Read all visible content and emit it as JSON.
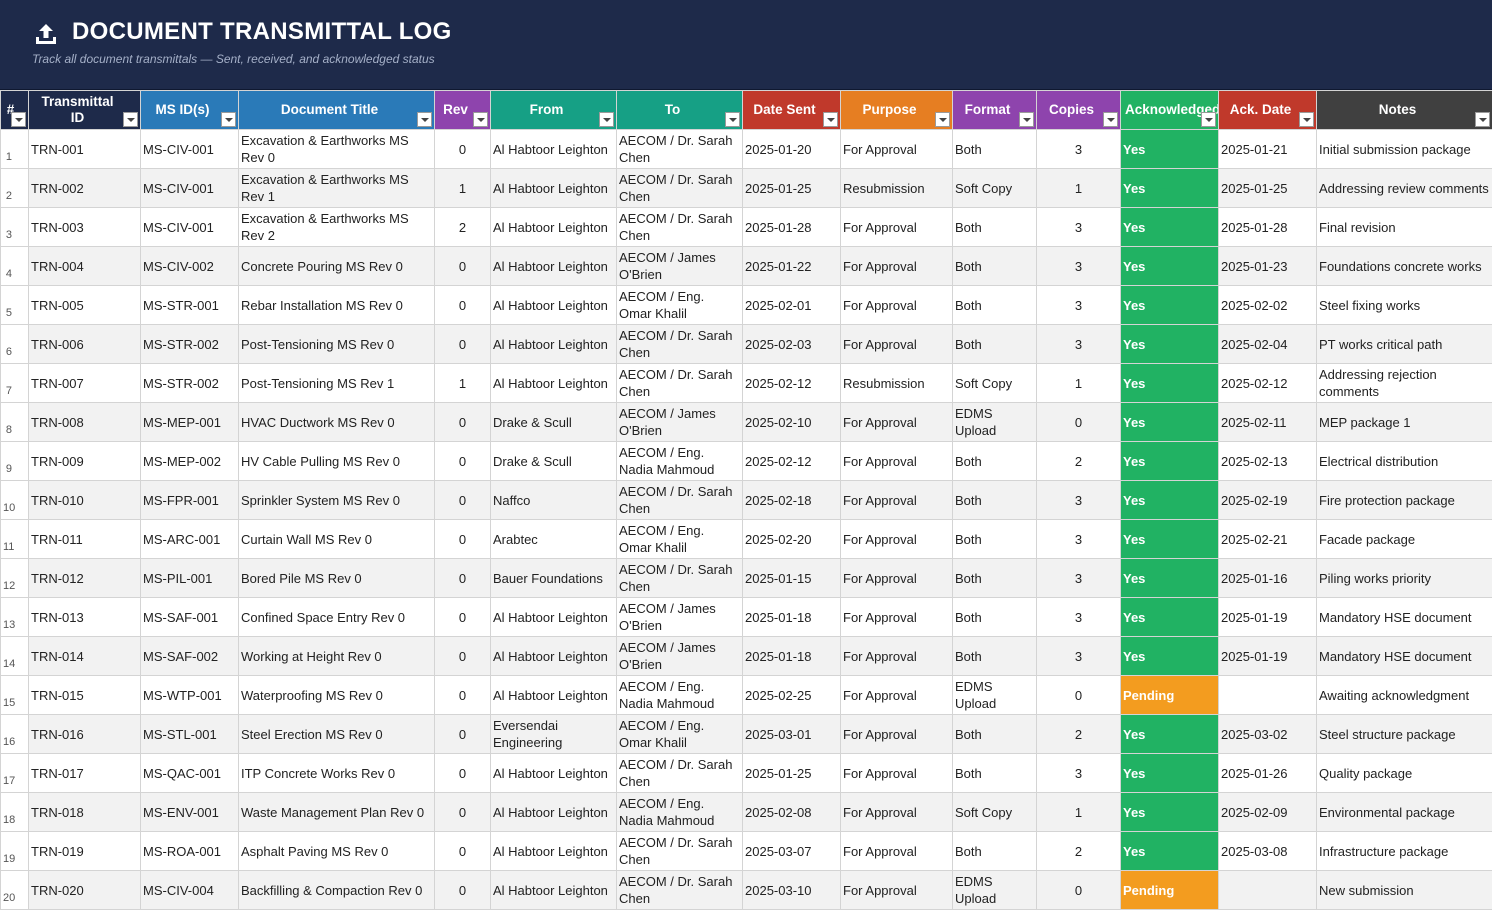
{
  "banner": {
    "icon": "upload-icon",
    "title": "DOCUMENT TRANSMITTAL LOG",
    "subtitle": "Track all document transmittals — Sent, received, and acknowledged status"
  },
  "colors": {
    "banner": "#1e2a4a",
    "status_yes": "#21b263",
    "status_pending": "#f39c1f"
  },
  "columns": [
    {
      "key": "num",
      "label": "#",
      "color": "#1e2a4a"
    },
    {
      "key": "id",
      "label": "Transmittal ID",
      "color": "#1e2a4a"
    },
    {
      "key": "ms",
      "label": "MS ID(s)",
      "color": "#2a7ab8"
    },
    {
      "key": "title",
      "label": "Document Title",
      "color": "#2a7ab8"
    },
    {
      "key": "rev",
      "label": "Rev",
      "color": "#8e44ad"
    },
    {
      "key": "from",
      "label": "From",
      "color": "#16a085"
    },
    {
      "key": "to",
      "label": "To",
      "color": "#16a085"
    },
    {
      "key": "sent",
      "label": "Date Sent",
      "color": "#c0392b"
    },
    {
      "key": "purpose",
      "label": "Purpose",
      "color": "#e67e22"
    },
    {
      "key": "format",
      "label": "Format",
      "color": "#8e44ad"
    },
    {
      "key": "copies",
      "label": "Copies",
      "color": "#8e44ad"
    },
    {
      "key": "ack",
      "label": "Acknowledged",
      "color": "#21b263"
    },
    {
      "key": "ackdate",
      "label": "Ack. Date",
      "color": "#c0392b"
    },
    {
      "key": "notes",
      "label": "Notes",
      "color": "#404040"
    }
  ],
  "rows": [
    {
      "num": "1",
      "id": "TRN-001",
      "ms": "MS-CIV-001",
      "title": "Excavation & Earthworks MS Rev 0",
      "rev": "0",
      "from": "Al Habtoor Leighton",
      "to": "AECOM / Dr. Sarah Chen",
      "sent": "2025-01-20",
      "purpose": "For Approval",
      "format": "Both",
      "copies": "3",
      "ack": "Yes",
      "ackdate": "2025-01-21",
      "notes": "Initial submission package"
    },
    {
      "num": "2",
      "id": "TRN-002",
      "ms": "MS-CIV-001",
      "title": "Excavation & Earthworks MS Rev 1",
      "rev": "1",
      "from": "Al Habtoor Leighton",
      "to": "AECOM / Dr. Sarah Chen",
      "sent": "2025-01-25",
      "purpose": "Resubmission",
      "format": "Soft Copy",
      "copies": "1",
      "ack": "Yes",
      "ackdate": "2025-01-25",
      "notes": "Addressing review comments"
    },
    {
      "num": "3",
      "id": "TRN-003",
      "ms": "MS-CIV-001",
      "title": "Excavation & Earthworks MS Rev 2",
      "rev": "2",
      "from": "Al Habtoor Leighton",
      "to": "AECOM / Dr. Sarah Chen",
      "sent": "2025-01-28",
      "purpose": "For Approval",
      "format": "Both",
      "copies": "3",
      "ack": "Yes",
      "ackdate": "2025-01-28",
      "notes": "Final revision"
    },
    {
      "num": "4",
      "id": "TRN-004",
      "ms": "MS-CIV-002",
      "title": "Concrete Pouring MS Rev 0",
      "rev": "0",
      "from": "Al Habtoor Leighton",
      "to": "AECOM / James O'Brien",
      "sent": "2025-01-22",
      "purpose": "For Approval",
      "format": "Both",
      "copies": "3",
      "ack": "Yes",
      "ackdate": "2025-01-23",
      "notes": "Foundations concrete works"
    },
    {
      "num": "5",
      "id": "TRN-005",
      "ms": "MS-STR-001",
      "title": "Rebar Installation MS Rev 0",
      "rev": "0",
      "from": "Al Habtoor Leighton",
      "to": "AECOM / Eng. Omar Khalil",
      "sent": "2025-02-01",
      "purpose": "For Approval",
      "format": "Both",
      "copies": "3",
      "ack": "Yes",
      "ackdate": "2025-02-02",
      "notes": "Steel fixing works"
    },
    {
      "num": "6",
      "id": "TRN-006",
      "ms": "MS-STR-002",
      "title": "Post-Tensioning MS Rev 0",
      "rev": "0",
      "from": "Al Habtoor Leighton",
      "to": "AECOM / Dr. Sarah Chen",
      "sent": "2025-02-03",
      "purpose": "For Approval",
      "format": "Both",
      "copies": "3",
      "ack": "Yes",
      "ackdate": "2025-02-04",
      "notes": "PT works critical path"
    },
    {
      "num": "7",
      "id": "TRN-007",
      "ms": "MS-STR-002",
      "title": "Post-Tensioning MS Rev 1",
      "rev": "1",
      "from": "Al Habtoor Leighton",
      "to": "AECOM / Dr. Sarah Chen",
      "sent": "2025-02-12",
      "purpose": "Resubmission",
      "format": "Soft Copy",
      "copies": "1",
      "ack": "Yes",
      "ackdate": "2025-02-12",
      "notes": "Addressing rejection comments"
    },
    {
      "num": "8",
      "id": "TRN-008",
      "ms": "MS-MEP-001",
      "title": "HVAC Ductwork MS Rev 0",
      "rev": "0",
      "from": "Drake & Scull",
      "to": "AECOM / James O'Brien",
      "sent": "2025-02-10",
      "purpose": "For Approval",
      "format": "EDMS Upload",
      "copies": "0",
      "ack": "Yes",
      "ackdate": "2025-02-11",
      "notes": "MEP package 1"
    },
    {
      "num": "9",
      "id": "TRN-009",
      "ms": "MS-MEP-002",
      "title": "HV Cable Pulling MS Rev 0",
      "rev": "0",
      "from": "Drake & Scull",
      "to": "AECOM / Eng. Nadia Mahmoud",
      "sent": "2025-02-12",
      "purpose": "For Approval",
      "format": "Both",
      "copies": "2",
      "ack": "Yes",
      "ackdate": "2025-02-13",
      "notes": "Electrical distribution"
    },
    {
      "num": "10",
      "id": "TRN-010",
      "ms": "MS-FPR-001",
      "title": "Sprinkler System MS Rev 0",
      "rev": "0",
      "from": "Naffco",
      "to": "AECOM / Dr. Sarah Chen",
      "sent": "2025-02-18",
      "purpose": "For Approval",
      "format": "Both",
      "copies": "3",
      "ack": "Yes",
      "ackdate": "2025-02-19",
      "notes": "Fire protection package"
    },
    {
      "num": "11",
      "id": "TRN-011",
      "ms": "MS-ARC-001",
      "title": "Curtain Wall MS Rev 0",
      "rev": "0",
      "from": "Arabtec",
      "to": "AECOM / Eng. Omar Khalil",
      "sent": "2025-02-20",
      "purpose": "For Approval",
      "format": "Both",
      "copies": "3",
      "ack": "Yes",
      "ackdate": "2025-02-21",
      "notes": "Facade package"
    },
    {
      "num": "12",
      "id": "TRN-012",
      "ms": "MS-PIL-001",
      "title": "Bored Pile MS Rev 0",
      "rev": "0",
      "from": "Bauer Foundations",
      "to": "AECOM / Dr. Sarah Chen",
      "sent": "2025-01-15",
      "purpose": "For Approval",
      "format": "Both",
      "copies": "3",
      "ack": "Yes",
      "ackdate": "2025-01-16",
      "notes": "Piling works priority"
    },
    {
      "num": "13",
      "id": "TRN-013",
      "ms": "MS-SAF-001",
      "title": "Confined Space Entry Rev 0",
      "rev": "0",
      "from": "Al Habtoor Leighton",
      "to": "AECOM / James O'Brien",
      "sent": "2025-01-18",
      "purpose": "For Approval",
      "format": "Both",
      "copies": "3",
      "ack": "Yes",
      "ackdate": "2025-01-19",
      "notes": "Mandatory HSE document"
    },
    {
      "num": "14",
      "id": "TRN-014",
      "ms": "MS-SAF-002",
      "title": "Working at Height Rev 0",
      "rev": "0",
      "from": "Al Habtoor Leighton",
      "to": "AECOM / James O'Brien",
      "sent": "2025-01-18",
      "purpose": "For Approval",
      "format": "Both",
      "copies": "3",
      "ack": "Yes",
      "ackdate": "2025-01-19",
      "notes": "Mandatory HSE document"
    },
    {
      "num": "15",
      "id": "TRN-015",
      "ms": "MS-WTP-001",
      "title": "Waterproofing MS Rev 0",
      "rev": "0",
      "from": "Al Habtoor Leighton",
      "to": "AECOM / Eng. Nadia Mahmoud",
      "sent": "2025-02-25",
      "purpose": "For Approval",
      "format": "EDMS Upload",
      "copies": "0",
      "ack": "Pending",
      "ackdate": "",
      "notes": "Awaiting acknowledgment"
    },
    {
      "num": "16",
      "id": "TRN-016",
      "ms": "MS-STL-001",
      "title": "Steel Erection MS Rev 0",
      "rev": "0",
      "from": "Eversendai Engineering",
      "to": "AECOM / Eng. Omar Khalil",
      "sent": "2025-03-01",
      "purpose": "For Approval",
      "format": "Both",
      "copies": "2",
      "ack": "Yes",
      "ackdate": "2025-03-02",
      "notes": "Steel structure package"
    },
    {
      "num": "17",
      "id": "TRN-017",
      "ms": "MS-QAC-001",
      "title": "ITP Concrete Works Rev 0",
      "rev": "0",
      "from": "Al Habtoor Leighton",
      "to": "AECOM / Dr. Sarah Chen",
      "sent": "2025-01-25",
      "purpose": "For Approval",
      "format": "Both",
      "copies": "3",
      "ack": "Yes",
      "ackdate": "2025-01-26",
      "notes": "Quality package"
    },
    {
      "num": "18",
      "id": "TRN-018",
      "ms": "MS-ENV-001",
      "title": "Waste Management Plan Rev 0",
      "rev": "0",
      "from": "Al Habtoor Leighton",
      "to": "AECOM / Eng. Nadia Mahmoud",
      "sent": "2025-02-08",
      "purpose": "For Approval",
      "format": "Soft Copy",
      "copies": "1",
      "ack": "Yes",
      "ackdate": "2025-02-09",
      "notes": "Environmental package"
    },
    {
      "num": "19",
      "id": "TRN-019",
      "ms": "MS-ROA-001",
      "title": "Asphalt Paving MS Rev 0",
      "rev": "0",
      "from": "Al Habtoor Leighton",
      "to": "AECOM / Dr. Sarah Chen",
      "sent": "2025-03-07",
      "purpose": "For Approval",
      "format": "Both",
      "copies": "2",
      "ack": "Yes",
      "ackdate": "2025-03-08",
      "notes": "Infrastructure package"
    },
    {
      "num": "20",
      "id": "TRN-020",
      "ms": "MS-CIV-004",
      "title": "Backfilling & Compaction Rev 0",
      "rev": "0",
      "from": "Al Habtoor Leighton",
      "to": "AECOM / Dr. Sarah Chen",
      "sent": "2025-03-10",
      "purpose": "For Approval",
      "format": "EDMS Upload",
      "copies": "0",
      "ack": "Pending",
      "ackdate": "",
      "notes": "New submission"
    }
  ]
}
